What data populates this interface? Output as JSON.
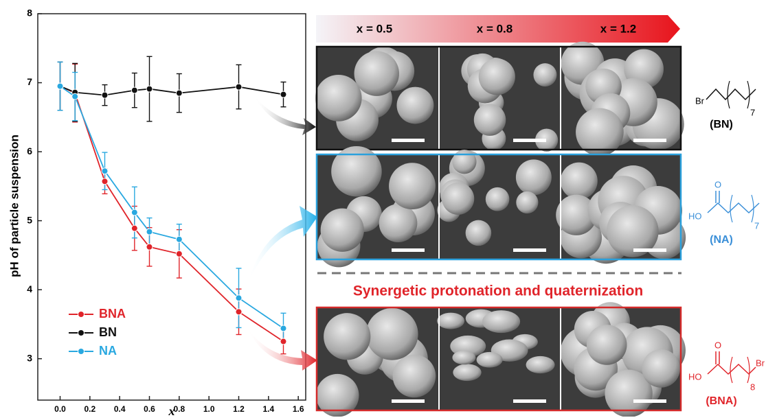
{
  "chart_data": {
    "type": "line",
    "xlabel": "x",
    "ylabel": "pH of particle suspension",
    "x": [
      0.0,
      0.1,
      0.3,
      0.5,
      0.6,
      0.8,
      1.2,
      1.5
    ],
    "series": [
      {
        "name": "BNA",
        "color": "#e0242a",
        "values": [
          6.95,
          6.85,
          5.57,
          4.89,
          4.62,
          4.52,
          3.68,
          3.25
        ],
        "errors": [
          0.35,
          0.42,
          0.18,
          0.32,
          0.28,
          0.35,
          0.33,
          0.18
        ]
      },
      {
        "name": "BN",
        "color": "#111111",
        "values": [
          6.95,
          6.86,
          6.82,
          6.89,
          6.91,
          6.85,
          6.94,
          6.83
        ],
        "errors": [
          0.35,
          0.42,
          0.15,
          0.25,
          0.47,
          0.28,
          0.32,
          0.18
        ]
      },
      {
        "name": "NA",
        "color": "#29a8e0",
        "values": [
          6.95,
          6.8,
          5.72,
          5.12,
          4.84,
          4.73,
          3.88,
          3.44
        ],
        "errors": [
          0.35,
          0.35,
          0.27,
          0.37,
          0.2,
          0.22,
          0.43,
          0.22
        ]
      }
    ],
    "xlim": [
      -0.15,
      1.65
    ],
    "xticks": [
      {
        "value": 0.0,
        "label": "0.0"
      },
      {
        "value": 0.2,
        "label": "0.2"
      },
      {
        "value": 0.4,
        "label": "0.4"
      },
      {
        "value": 0.6,
        "label": "0.6"
      },
      {
        "value": 0.8,
        "label": "0.8"
      },
      {
        "value": 1.0,
        "label": "1.0"
      },
      {
        "value": 1.2,
        "label": "1.2"
      },
      {
        "value": 1.4,
        "label": "1.4"
      },
      {
        "value": 1.6,
        "label": "1.6"
      }
    ],
    "ylim": [
      2.4,
      8
    ],
    "yticks": [
      3,
      4,
      5,
      6,
      7,
      8
    ],
    "legend": "lower left",
    "grid": false
  },
  "panels": {
    "header": [
      "x = 0.5",
      "x = 0.8",
      "x = 1.2"
    ],
    "banner": "Synergetic protonation and quaternization",
    "molecules": [
      {
        "name": "(BN)",
        "atoms": [
          "Br"
        ],
        "subscript": "7"
      },
      {
        "name": "(NA)",
        "atoms": [
          "O",
          "HO"
        ],
        "subscript": "7"
      },
      {
        "name": "(BNA)",
        "atoms": [
          "O",
          "HO",
          "Br"
        ],
        "subscript": "8"
      }
    ]
  }
}
